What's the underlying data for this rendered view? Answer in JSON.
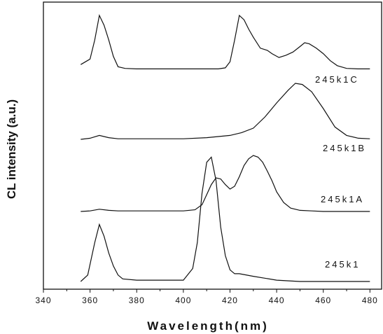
{
  "chart_data": {
    "type": "line",
    "xlabel": "Wavelength(nm)",
    "ylabel": "CL intensity (a.u.)",
    "xlim": [
      340,
      485
    ],
    "xticks": [
      340,
      360,
      380,
      400,
      420,
      440,
      460,
      480
    ],
    "y_ticks_labeled": false,
    "legend": "none; series labels placed near each curve on the right",
    "series": [
      {
        "name": "245k1C",
        "x": [
          356,
          360,
          362,
          364,
          366,
          368,
          370,
          372,
          375,
          380,
          390,
          400,
          410,
          415,
          418,
          420,
          422,
          424,
          426,
          428,
          430,
          433,
          436,
          438,
          441,
          444,
          447,
          450,
          452,
          454,
          457,
          460,
          463,
          466,
          470,
          475,
          480
        ],
        "y": [
          0.1,
          0.2,
          0.55,
          1.0,
          0.82,
          0.55,
          0.25,
          0.06,
          0.03,
          0.02,
          0.02,
          0.02,
          0.02,
          0.02,
          0.04,
          0.15,
          0.55,
          1.0,
          0.92,
          0.75,
          0.6,
          0.4,
          0.36,
          0.3,
          0.23,
          0.27,
          0.33,
          0.43,
          0.5,
          0.48,
          0.4,
          0.3,
          0.17,
          0.08,
          0.03,
          0.02,
          0.02
        ]
      },
      {
        "name": "245k1B",
        "x": [
          356,
          360,
          364,
          368,
          372,
          380,
          400,
          410,
          420,
          425,
          430,
          435,
          440,
          445,
          448,
          451,
          455,
          460,
          465,
          470,
          475,
          480
        ],
        "y": [
          0.0,
          0.02,
          0.07,
          0.03,
          0.01,
          0.01,
          0.01,
          0.03,
          0.07,
          0.12,
          0.2,
          0.4,
          0.65,
          0.88,
          1.0,
          0.98,
          0.85,
          0.55,
          0.22,
          0.07,
          0.02,
          0.01
        ]
      },
      {
        "name": "245k1A",
        "x": [
          356,
          360,
          364,
          368,
          372,
          380,
          400,
          405,
          408,
          410,
          412,
          414,
          416,
          418,
          420,
          422,
          424,
          426,
          428,
          430,
          432,
          434,
          436,
          438,
          440,
          443,
          446,
          450,
          455,
          460,
          470,
          480
        ],
        "y": [
          0.0,
          0.01,
          0.04,
          0.02,
          0.01,
          0.01,
          0.01,
          0.03,
          0.12,
          0.3,
          0.48,
          0.6,
          0.58,
          0.48,
          0.4,
          0.45,
          0.62,
          0.82,
          0.94,
          1.0,
          0.97,
          0.88,
          0.72,
          0.55,
          0.35,
          0.16,
          0.06,
          0.02,
          0.01,
          0.0,
          0.0,
          0.0
        ]
      },
      {
        "name": "245k1",
        "x": [
          356,
          359,
          362,
          364,
          366,
          368,
          370,
          372,
          374,
          380,
          390,
          400,
          404,
          406,
          408,
          410,
          412,
          414,
          416,
          418,
          420,
          422,
          424,
          430,
          440,
          450,
          460,
          470,
          480
        ],
        "y": [
          0.0,
          0.05,
          0.3,
          0.44,
          0.35,
          0.22,
          0.12,
          0.05,
          0.02,
          0.01,
          0.01,
          0.01,
          0.1,
          0.3,
          0.68,
          0.92,
          0.96,
          0.78,
          0.42,
          0.2,
          0.09,
          0.06,
          0.06,
          0.04,
          0.01,
          0.0,
          0.0,
          0.0,
          0.0
        ]
      }
    ]
  }
}
